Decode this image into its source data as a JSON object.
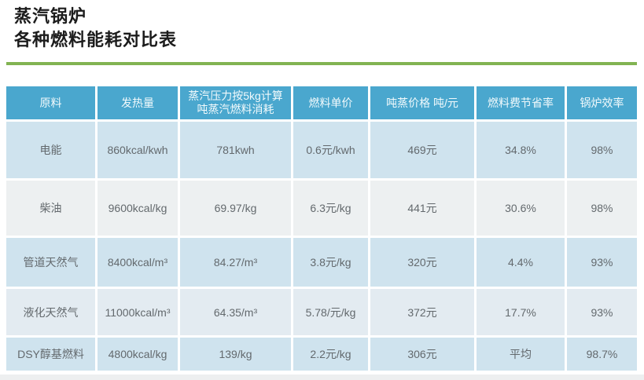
{
  "page": {
    "title_line1": "蒸汽锅炉",
    "title_line2": "各种燃料能耗对比表"
  },
  "colors": {
    "header_bg": "#4aa7ce",
    "header_text": "#f2fafc",
    "row_light_blue": "#cfe3ee",
    "row_light_gray": "#edf0f1",
    "row_blue_gray": "#e3ebf1",
    "cell_text": "#63696d",
    "accent_line_green": "#82b352"
  },
  "table": {
    "headers": [
      "原料",
      "发热量",
      "蒸汽压力按5kg计算\n吨蒸汽燃料消耗",
      "燃料单价",
      "吨蒸价格 吨/元",
      "燃料费节省率",
      "锅炉效率"
    ],
    "rows": [
      {
        "cells": [
          "电能",
          "860kcal/kwh",
          "781kwh",
          "0.6元/kwh",
          "469元",
          "34.8%",
          "98%"
        ]
      },
      {
        "cells": [
          "柴油",
          "9600kcal/kg",
          "69.97/kg",
          "6.3元/kg",
          "441元",
          "30.6%",
          "98%"
        ]
      },
      {
        "cells": [
          "管道天然气",
          "8400kcal/m³",
          "84.27/m³",
          "3.8元/kg",
          "320元",
          "4.4%",
          "93%"
        ]
      },
      {
        "cells": [
          "液化天然气",
          "11000kcal/m³",
          "64.35/m³",
          "5.78/元/kg",
          "372元",
          "17.7%",
          "93%"
        ]
      },
      {
        "cells": [
          "DSY醇基燃料",
          "4800kcal/kg",
          "139/kg",
          "2.2元/kg",
          "306元",
          "平均",
          "98.7%"
        ]
      }
    ]
  }
}
